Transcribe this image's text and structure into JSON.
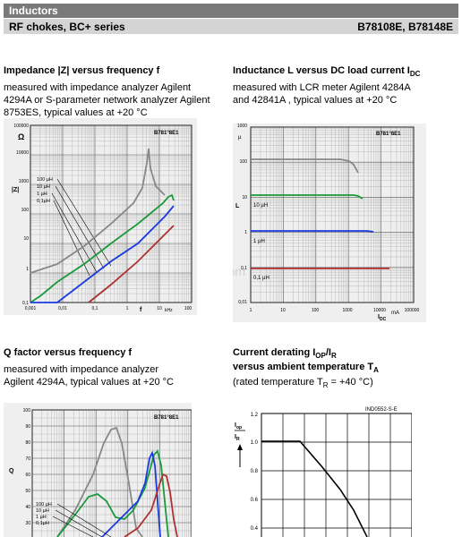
{
  "header": {
    "section": "Inductors",
    "product": "RF chokes, BC+ series",
    "part_numbers": "B78108E, B78148E"
  },
  "chart1": {
    "title_main": "Impedance |Z| versus frequency f",
    "desc": [
      "measured with impedance analyzer Agilent",
      "4294A or S-parameter network analyzer Agilent",
      "8753ES, typical values at +20 °C"
    ],
    "tag": "B781°8E1",
    "unit_y": "Ω",
    "ylabel": "|Z|",
    "xlabel": "f",
    "xunit": "kHz",
    "yticks": [
      "100000",
      "10000",
      "1000",
      "100",
      "10",
      "1",
      "0,1"
    ],
    "xticks": [
      "0,001",
      "0,01",
      "0,1",
      "1",
      "10",
      "100"
    ],
    "legend": [
      "100 µH",
      "10 µH",
      "1 µH",
      "0,1µH"
    ]
  },
  "chart2": {
    "title_main": "Inductance L versus DC load current I",
    "title_sub": "DC",
    "desc": [
      "measured with LCR meter Agilent 4284A",
      "and 42841A , typical values at +20 °C"
    ],
    "tag": "B781°8E1",
    "unit_y": "µ",
    "ylabel": "L",
    "xlabel": "I",
    "xlabel_sub": "DC",
    "xunit": "mA",
    "yticks": [
      "1000",
      "100",
      "10",
      "1",
      "0,1",
      "0,01"
    ],
    "xticks": [
      "1",
      "10",
      "100",
      "1000",
      "10000",
      "100000"
    ],
    "curve_labels": [
      "10 µH",
      "1 µH",
      "0,1 µH"
    ]
  },
  "chart3": {
    "title_main": "Q factor versus frequency f",
    "desc": [
      "measured with impedance analyzer",
      "Agilent 4294A, typical values at +20 °C"
    ],
    "tag": "B781°8E1",
    "ylabel": "Q",
    "yticks": [
      "100",
      "90",
      "80",
      "70",
      "60",
      "50",
      "40",
      "30"
    ],
    "legend": [
      "100 µH",
      "10 µH",
      "1 µH",
      "0,1µH"
    ]
  },
  "chart4": {
    "title_main": "Current derating I",
    "title_sub1": "OP",
    "title_mid": "/I",
    "title_sub2": "R",
    "title_line2": "versus ambient temperature T",
    "title_line2_sub": "A",
    "desc": "(rated temperature T",
    "desc_sub": "R",
    "desc_end": " = +40 °C)",
    "tag": "IND0552-S-E",
    "ylabel_top": "I",
    "ylabel_top_sub": "op",
    "ylabel_bot": "I",
    "ylabel_bot_sub": "R",
    "yticks": [
      "1.2",
      "1.0",
      "0.8",
      "0.6",
      "0.4"
    ]
  },
  "watermark": "cad2681.com",
  "colors": {
    "100uH": "#888888",
    "10uH": "#1a9a3a",
    "1uH": "#1a3ae0",
    "0.1uH": "#b03030"
  }
}
